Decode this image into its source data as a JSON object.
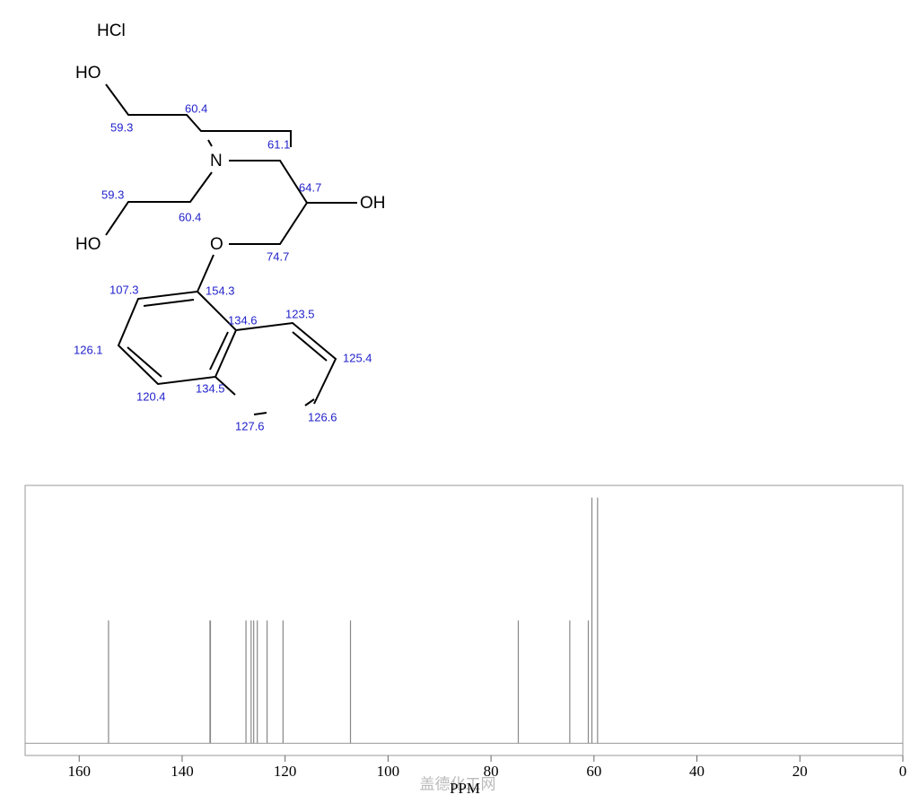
{
  "structure": {
    "salt": "HCl",
    "atoms": [
      "HO",
      "N",
      "OH",
      "HO",
      "O"
    ],
    "shifts": [
      "59.3",
      "60.4",
      "61.1",
      "59.3",
      "60.4",
      "64.7",
      "74.7",
      "107.3",
      "154.3",
      "134.6",
      "123.5",
      "126.1",
      "125.4",
      "120.4",
      "134.5",
      "127.6",
      "126.6"
    ]
  },
  "chart_data": {
    "type": "spectrum",
    "x_label": "PPM",
    "watermark": "盖德化工网",
    "x": [
      154.3,
      134.6,
      134.5,
      127.6,
      126.6,
      126.1,
      125.4,
      123.5,
      120.4,
      107.3,
      74.7,
      64.7,
      61.1,
      60.4,
      59.3
    ],
    "values": [
      1,
      1,
      1,
      1,
      1,
      1,
      1,
      1,
      1,
      1,
      1,
      1,
      1,
      2,
      2
    ],
    "color": "#888888",
    "xlim": [
      170.5,
      0
    ],
    "xticks": [
      160,
      140,
      120,
      100,
      80,
      60,
      40,
      20,
      0
    ],
    "ylim": [
      -0.1,
      2.1
    ]
  }
}
